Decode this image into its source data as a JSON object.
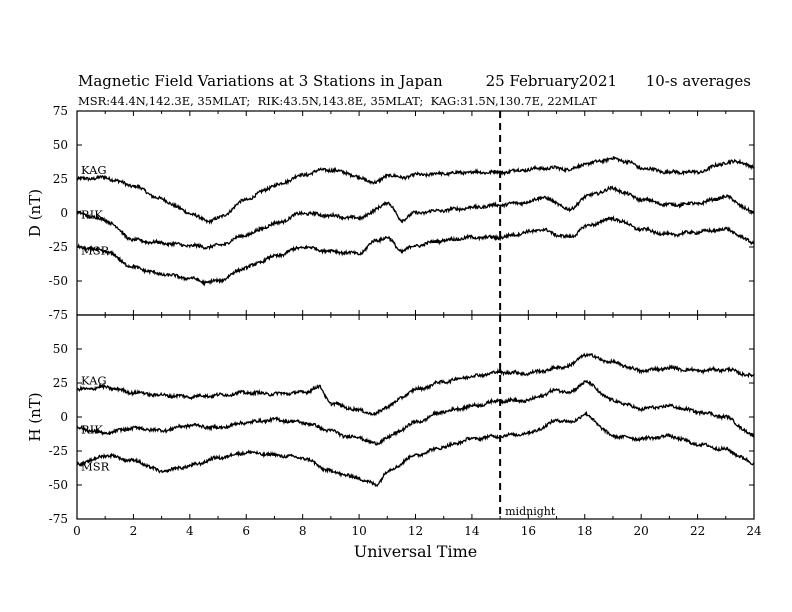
{
  "title": {
    "main": "Magnetic Field Variations at 3 Stations in Japan",
    "date": "25 February2021",
    "averaging": "10-s averages"
  },
  "subtitle": "MSR:44.4N,142.3E, 35MLAT;  RIK:43.5N,143.8E, 35MLAT;  KAG:31.5N,130.7E, 22MLAT",
  "colors": {
    "line": "#000000",
    "background": "#ffffff"
  },
  "chart_data": [
    {
      "type": "line",
      "panel": "D",
      "ylabel": "D (nT)",
      "xlabel": "",
      "xlim": [
        0,
        24
      ],
      "ylim": [
        -75,
        75
      ],
      "yticks": [
        75,
        50,
        25,
        0,
        -25,
        -50,
        -75
      ],
      "xticks": [
        0,
        2,
        4,
        6,
        8,
        10,
        12,
        14,
        16,
        18,
        20,
        22,
        24
      ],
      "grid": false,
      "marker_line": {
        "x": 15,
        "style": "dashed"
      },
      "series": [
        {
          "name": "KAG",
          "x": [
            0,
            1,
            2,
            3,
            4,
            4.6,
            5,
            6,
            7,
            8,
            8.8,
            9.5,
            10,
            10.6,
            11,
            11.5,
            12,
            13,
            14,
            15,
            16,
            16.5,
            17,
            17.5,
            18,
            19,
            19.5,
            20,
            21,
            22,
            23,
            23.5,
            24
          ],
          "y": [
            25,
            26,
            20,
            10,
            0,
            -6,
            -4,
            10,
            20,
            28,
            32,
            30,
            26,
            22,
            28,
            26,
            28,
            29,
            30,
            30,
            32,
            33,
            33,
            32,
            36,
            40,
            38,
            33,
            30,
            30,
            37,
            38,
            33
          ]
        },
        {
          "name": "RIK",
          "x": [
            0,
            1,
            2,
            3,
            4,
            4.6,
            5,
            6,
            7,
            8,
            9,
            10,
            10.4,
            11,
            11.5,
            12,
            13,
            14,
            15,
            16,
            16.5,
            17,
            17.5,
            18,
            19,
            20,
            21,
            22,
            23,
            24
          ],
          "y": [
            0,
            -5,
            -20,
            -22,
            -24,
            -25,
            -24,
            -16,
            -8,
            0,
            -2,
            -4,
            0,
            8,
            -5,
            0,
            2,
            4,
            6,
            8,
            12,
            7,
            2,
            12,
            18,
            10,
            6,
            7,
            12,
            0
          ]
        },
        {
          "name": "MSR",
          "x": [
            0,
            1,
            2,
            3,
            4,
            4.6,
            5,
            6,
            7,
            8,
            9,
            10,
            10.6,
            11,
            11.5,
            12,
            13,
            14,
            15,
            16,
            16.5,
            17,
            17.5,
            18,
            19,
            20,
            21,
            22,
            23,
            24
          ],
          "y": [
            -25,
            -28,
            -40,
            -45,
            -48,
            -51,
            -50,
            -40,
            -32,
            -25,
            -28,
            -30,
            -20,
            -18,
            -28,
            -24,
            -20,
            -18,
            -18,
            -14,
            -12,
            -16,
            -18,
            -10,
            -4,
            -12,
            -16,
            -14,
            -12,
            -22
          ]
        }
      ]
    },
    {
      "type": "line",
      "panel": "H",
      "ylabel": "H (nT)",
      "xlabel": "Universal Time",
      "xlim": [
        0,
        24
      ],
      "ylim": [
        -75,
        75
      ],
      "yticks": [
        75,
        50,
        25,
        0,
        -25,
        -50,
        -75
      ],
      "xticks": [
        0,
        2,
        4,
        6,
        8,
        10,
        12,
        14,
        16,
        18,
        20,
        22,
        24
      ],
      "grid": false,
      "marker_line": {
        "x": 15,
        "style": "dashed",
        "label": "midnight"
      },
      "series": [
        {
          "name": "KAG",
          "x": [
            0,
            1,
            2,
            3,
            4,
            5,
            6,
            7,
            8,
            8.6,
            9,
            10,
            10.6,
            11,
            12,
            13,
            14,
            15,
            16,
            16.5,
            17,
            17.5,
            18,
            19,
            20,
            21,
            22,
            23,
            24
          ],
          "y": [
            20,
            22,
            18,
            16,
            15,
            16,
            18,
            17,
            18,
            22,
            10,
            5,
            2,
            8,
            20,
            26,
            30,
            33,
            32,
            34,
            36,
            38,
            46,
            40,
            34,
            36,
            34,
            35,
            30
          ]
        },
        {
          "name": "RIK",
          "x": [
            0,
            1,
            2,
            3,
            4,
            5,
            6,
            7,
            8,
            9,
            9.5,
            10,
            10.6,
            11,
            12,
            13,
            14,
            15,
            16,
            16.5,
            17,
            17.5,
            18,
            19,
            20,
            21,
            22,
            23,
            24
          ],
          "y": [
            -8,
            -12,
            -8,
            -10,
            -6,
            -8,
            -4,
            -2,
            -4,
            -10,
            -14,
            -15,
            -20,
            -15,
            -4,
            4,
            8,
            12,
            12,
            16,
            20,
            18,
            26,
            12,
            6,
            8,
            4,
            0,
            -14
          ]
        },
        {
          "name": "MSR",
          "x": [
            0,
            0.5,
            1,
            2,
            3,
            4,
            5,
            6,
            7,
            8,
            9,
            10,
            10.6,
            11,
            12,
            13,
            14,
            15,
            16,
            16.5,
            17,
            17.5,
            18,
            19,
            20,
            21,
            22,
            23,
            24
          ],
          "y": [
            -35,
            -32,
            -28,
            -32,
            -40,
            -36,
            -30,
            -26,
            -28,
            -30,
            -40,
            -45,
            -50,
            -40,
            -28,
            -22,
            -16,
            -14,
            -12,
            -8,
            -2,
            -4,
            2,
            -14,
            -16,
            -14,
            -20,
            -24,
            -34
          ]
        }
      ]
    }
  ]
}
